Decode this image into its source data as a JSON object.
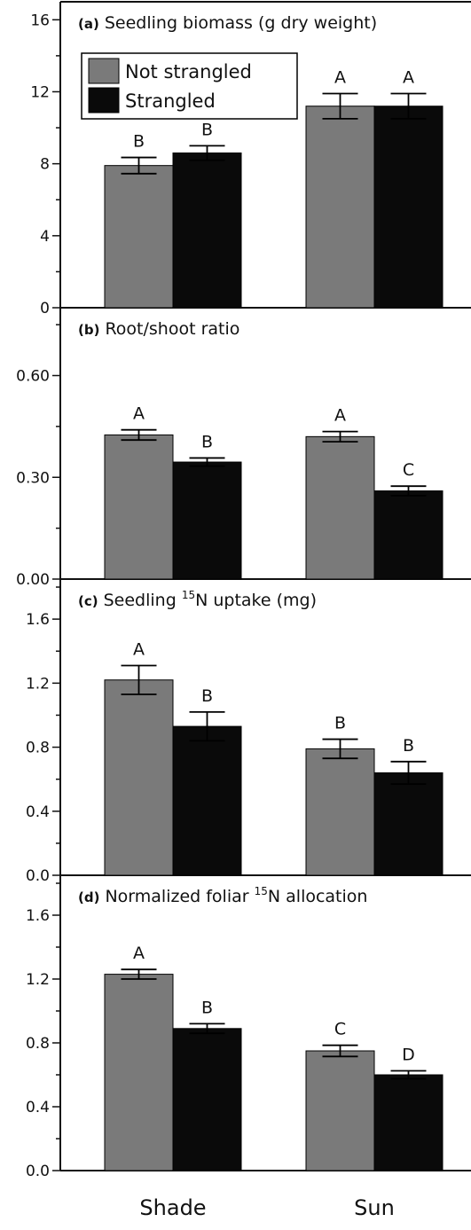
{
  "chart_data": [
    {
      "type": "bar",
      "panel_id": "(a)",
      "title": "Seedling biomass (g dry weight)",
      "categories": [
        "Shade",
        "Sun"
      ],
      "ylim": [
        0,
        17
      ],
      "yticks": [
        "0",
        "4",
        "8",
        "12",
        "16"
      ],
      "ytick_values": [
        0,
        4,
        8,
        12,
        16
      ],
      "series": [
        {
          "name": "Not strangled",
          "values": [
            7.9,
            11.2
          ],
          "errors": [
            0.45,
            0.7
          ],
          "letters": [
            "B",
            "A"
          ]
        },
        {
          "name": "Strangled",
          "values": [
            8.6,
            11.2
          ],
          "errors": [
            0.4,
            0.7
          ],
          "letters": [
            "B",
            "A"
          ]
        }
      ],
      "legend": "top-left"
    },
    {
      "type": "bar",
      "panel_id": "(b)",
      "title": "Root/shoot ratio",
      "categories": [
        "Shade",
        "Sun"
      ],
      "ylim": [
        0,
        0.8
      ],
      "yticks": [
        "0.00",
        "0.30",
        "0.60"
      ],
      "ytick_values": [
        0,
        0.3,
        0.6
      ],
      "series": [
        {
          "name": "Not strangled",
          "values": [
            0.425,
            0.42
          ],
          "errors": [
            0.015,
            0.015
          ],
          "letters": [
            "A",
            "A"
          ]
        },
        {
          "name": "Strangled",
          "values": [
            0.345,
            0.26
          ],
          "errors": [
            0.012,
            0.014
          ],
          "letters": [
            "B",
            "C"
          ]
        }
      ]
    },
    {
      "type": "bar",
      "panel_id": "(c)",
      "title_prefix": "Seedling ",
      "title_sup": "15",
      "title_suffix": "N uptake (mg)",
      "categories": [
        "Shade",
        "Sun"
      ],
      "ylim": [
        0,
        1.85
      ],
      "yticks": [
        "0.0",
        "0.4",
        "0.8",
        "1.2",
        "1.6"
      ],
      "ytick_values": [
        0,
        0.4,
        0.8,
        1.2,
        1.6
      ],
      "series": [
        {
          "name": "Not strangled",
          "values": [
            1.22,
            0.79
          ],
          "errors": [
            0.09,
            0.06
          ],
          "letters": [
            "A",
            "B"
          ]
        },
        {
          "name": "Strangled",
          "values": [
            0.93,
            0.64
          ],
          "errors": [
            0.09,
            0.07
          ],
          "letters": [
            "B",
            "B"
          ]
        }
      ]
    },
    {
      "type": "bar",
      "panel_id": "(d)",
      "title_prefix": "Normalized foliar ",
      "title_sup": "15",
      "title_suffix": "N allocation",
      "categories": [
        "Shade",
        "Sun"
      ],
      "ylim": [
        0,
        1.85
      ],
      "yticks": [
        "0.0",
        "0.4",
        "0.8",
        "1.2",
        "1.6"
      ],
      "ytick_values": [
        0,
        0.4,
        0.8,
        1.2,
        1.6
      ],
      "series": [
        {
          "name": "Not strangled",
          "values": [
            1.23,
            0.75
          ],
          "errors": [
            0.03,
            0.035
          ],
          "letters": [
            "A",
            "C"
          ]
        },
        {
          "name": "Strangled",
          "values": [
            0.89,
            0.6
          ],
          "errors": [
            0.03,
            0.025
          ],
          "letters": [
            "B",
            "D"
          ]
        }
      ]
    }
  ],
  "colors": {
    "not_strangled": "#7a7a7a",
    "strangled": "#0a0a0a",
    "axis": "#111111"
  }
}
